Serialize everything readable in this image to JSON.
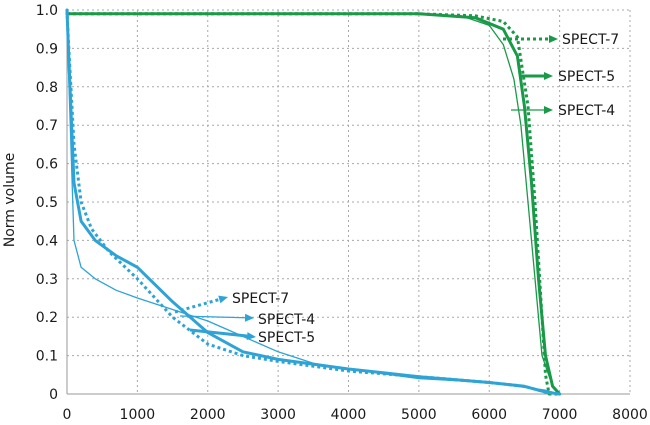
{
  "chart_data": {
    "type": "line",
    "title": "",
    "xlabel": "",
    "ylabel": "Norm volume",
    "xlim": [
      0,
      8000
    ],
    "ylim": [
      0,
      1.0
    ],
    "x_ticks": [
      "0",
      "1000",
      "2000",
      "3000",
      "4000",
      "5000",
      "6000",
      "7000",
      "8000"
    ],
    "y_ticks": [
      "0",
      "0.1",
      "0.2",
      "0.3",
      "0.4",
      "0.5",
      "0.6",
      "0.7",
      "0.8",
      "0.9",
      "1.0"
    ],
    "grid": true,
    "colors": {
      "green": "#1a9a48",
      "blue": "#2ea3d6"
    },
    "series": [
      {
        "name": "SPECT-7",
        "group": "green",
        "dash": true,
        "width": 3,
        "x": [
          0,
          5000,
          5800,
          6200,
          6400,
          6550,
          6650,
          6750,
          6800,
          6850,
          7000
        ],
        "y": [
          0.99,
          0.99,
          0.985,
          0.97,
          0.93,
          0.75,
          0.5,
          0.2,
          0.05,
          0.0,
          0.0
        ]
      },
      {
        "name": "SPECT-5",
        "group": "green",
        "dash": false,
        "width": 3,
        "x": [
          0,
          5000,
          5800,
          6200,
          6400,
          6500,
          6600,
          6700,
          6800,
          6900,
          7000
        ],
        "y": [
          0.99,
          0.99,
          0.98,
          0.95,
          0.88,
          0.75,
          0.55,
          0.3,
          0.1,
          0.02,
          0.0
        ]
      },
      {
        "name": "SPECT-4",
        "group": "green",
        "dash": false,
        "width": 1.3,
        "x": [
          0,
          4800,
          5600,
          6000,
          6200,
          6350,
          6450,
          6550,
          6650,
          6750,
          6900,
          7000
        ],
        "y": [
          0.99,
          0.99,
          0.985,
          0.96,
          0.91,
          0.82,
          0.7,
          0.5,
          0.3,
          0.1,
          0.02,
          0.0
        ]
      },
      {
        "name": "SPECT-7",
        "group": "blue",
        "dash": true,
        "width": 3,
        "x": [
          0,
          20,
          100,
          200,
          350,
          600,
          1000,
          1500,
          2000,
          2500,
          3000,
          4000,
          5000,
          6000,
          6500,
          6800,
          7000
        ],
        "y": [
          1.0,
          0.92,
          0.65,
          0.5,
          0.43,
          0.37,
          0.3,
          0.2,
          0.13,
          0.1,
          0.085,
          0.06,
          0.045,
          0.03,
          0.02,
          0.005,
          0.0
        ]
      },
      {
        "name": "SPECT-4",
        "group": "blue",
        "dash": false,
        "width": 1.3,
        "x": [
          0,
          20,
          100,
          200,
          400,
          700,
          1000,
          1500,
          2000,
          2500,
          3000,
          3500,
          4000,
          5000,
          6000,
          6800,
          7000
        ],
        "y": [
          1.0,
          0.85,
          0.4,
          0.33,
          0.3,
          0.27,
          0.25,
          0.22,
          0.19,
          0.15,
          0.11,
          0.08,
          0.065,
          0.04,
          0.03,
          0.01,
          0.0
        ]
      },
      {
        "name": "SPECT-5",
        "group": "blue",
        "dash": false,
        "width": 3,
        "x": [
          0,
          20,
          100,
          200,
          400,
          700,
          1000,
          1500,
          2000,
          2500,
          3000,
          4000,
          5000,
          6000,
          6500,
          6800,
          7000
        ],
        "y": [
          1.0,
          0.9,
          0.55,
          0.45,
          0.4,
          0.36,
          0.33,
          0.24,
          0.16,
          0.11,
          0.09,
          0.065,
          0.045,
          0.03,
          0.02,
          0.005,
          0.0
        ]
      }
    ],
    "annotations": [
      {
        "text": "SPECT-7",
        "group": "green",
        "dash": true
      },
      {
        "text": "SPECT-5",
        "group": "green",
        "dash": false
      },
      {
        "text": "SPECT-4",
        "group": "green",
        "dash": false
      },
      {
        "text": "SPECT-7",
        "group": "blue",
        "dash": true
      },
      {
        "text": "SPECT-4",
        "group": "blue",
        "dash": false
      },
      {
        "text": "SPECT-5",
        "group": "blue",
        "dash": false
      }
    ]
  }
}
